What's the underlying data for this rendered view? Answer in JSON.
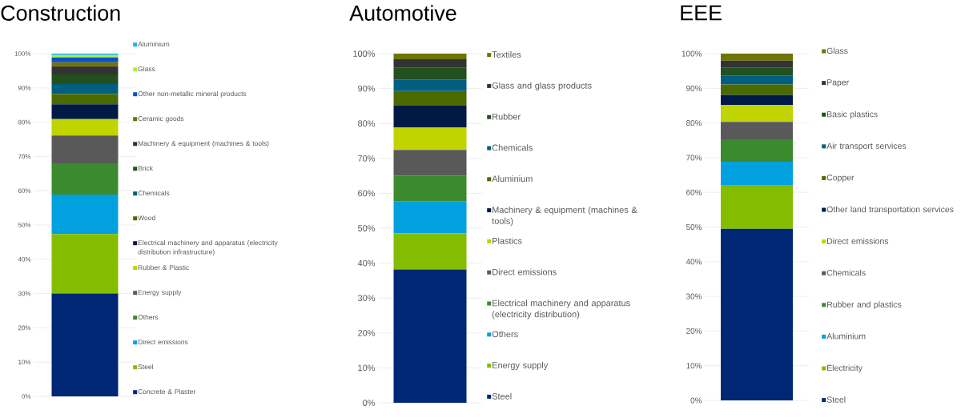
{
  "chart_data": [
    {
      "type": "bar",
      "title": "Construction",
      "stacked": true,
      "categories": [
        null
      ],
      "ylim": [
        0,
        100
      ],
      "yticks": [
        {
          "value": 0,
          "label": "0%"
        },
        {
          "value": 10,
          "label": "10%"
        },
        {
          "value": 20,
          "label": "20%"
        },
        {
          "value": 30,
          "label": "30%"
        },
        {
          "value": 40,
          "label": "40%"
        },
        {
          "value": 50,
          "label": "50%"
        },
        {
          "value": 60,
          "label": "60%"
        },
        {
          "value": 70,
          "label": "70%"
        },
        {
          "value": 80,
          "label": "80%"
        },
        {
          "value": 90,
          "label": "90%"
        },
        {
          "value": 100,
          "label": "100%"
        }
      ],
      "grid": "y",
      "legend": "right",
      "series": [
        {
          "name": "Concrete & Plaster",
          "color": "#002776",
          "values": [
            30.0
          ]
        },
        {
          "name": "Steel",
          "color": "#84bd00",
          "values": [
            17.4
          ]
        },
        {
          "name": "Direct emissions",
          "color": "#00a1de",
          "values": [
            11.5
          ]
        },
        {
          "name": "Others",
          "color": "#3c8a2e",
          "values": [
            9.1
          ]
        },
        {
          "name": "Energy supply",
          "color": "#595959",
          "values": [
            8.1
          ]
        },
        {
          "name": "Rubber & Plastic",
          "color": "#c0d400",
          "values": [
            4.8
          ]
        },
        {
          "name": "Electrical machinery and apparatus (electricity distribution infrastructure)",
          "color": "#001a45",
          "values": [
            4.3
          ]
        },
        {
          "name": "Wood",
          "color": "#4a6a00",
          "values": [
            3.0
          ]
        },
        {
          "name": "Chemicals",
          "color": "#005f80",
          "values": [
            2.9
          ]
        },
        {
          "name": "Brick",
          "color": "#22501f",
          "values": [
            2.8
          ]
        },
        {
          "name": "Machinery & equipment (machines & tools)",
          "color": "#333333",
          "values": [
            2.4
          ]
        },
        {
          "name": "Ceramic goods",
          "color": "#6e7500",
          "values": [
            1.2
          ]
        },
        {
          "name": "Other non-metallic mineral products",
          "color": "#0c4ecf",
          "values": [
            1.4
          ]
        },
        {
          "name": "Glass",
          "color": "#a5f03c",
          "values": [
            0.7
          ]
        },
        {
          "name": "Aluminium",
          "color": "#20b0f0",
          "values": [
            0.4
          ]
        }
      ]
    },
    {
      "type": "bar",
      "title": "Automotive",
      "stacked": true,
      "categories": [
        null
      ],
      "ylim": [
        0,
        100
      ],
      "yticks": [
        {
          "value": 0,
          "label": "0%"
        },
        {
          "value": 10,
          "label": "10%"
        },
        {
          "value": 20,
          "label": "20%"
        },
        {
          "value": 30,
          "label": "30%"
        },
        {
          "value": 40,
          "label": "40%"
        },
        {
          "value": 50,
          "label": "50%"
        },
        {
          "value": 60,
          "label": "60%"
        },
        {
          "value": 70,
          "label": "70%"
        },
        {
          "value": 80,
          "label": "80%"
        },
        {
          "value": 90,
          "label": "90%"
        },
        {
          "value": 100,
          "label": "100%"
        }
      ],
      "grid": "y",
      "legend": "right",
      "series": [
        {
          "name": "Steel",
          "color": "#002776",
          "values": [
            38.2
          ]
        },
        {
          "name": "Energy supply",
          "color": "#84bd00",
          "values": [
            10.3
          ]
        },
        {
          "name": "Others",
          "color": "#00a1de",
          "values": [
            9.1
          ]
        },
        {
          "name": "Electrical machinery and apparatus (electricity distribution)",
          "color": "#3c8a2e",
          "values": [
            7.5
          ]
        },
        {
          "name": "Direct emissions",
          "color": "#595959",
          "values": [
            7.3
          ]
        },
        {
          "name": "Plastics",
          "color": "#c0d400",
          "values": [
            6.5
          ]
        },
        {
          "name": "Machinery & equipment (machines & tools)",
          "color": "#001a45",
          "values": [
            6.2
          ]
        },
        {
          "name": "Aluminium",
          "color": "#4a6a00",
          "values": [
            4.2
          ]
        },
        {
          "name": "Chemicals",
          "color": "#005f80",
          "values": [
            3.3
          ]
        },
        {
          "name": "Rubber",
          "color": "#22501f",
          "values": [
            3.3
          ]
        },
        {
          "name": "Glass and glass products",
          "color": "#333333",
          "values": [
            2.5
          ]
        },
        {
          "name": "Textiles",
          "color": "#6e7500",
          "values": [
            1.6
          ]
        }
      ]
    },
    {
      "type": "bar",
      "title": "EEE",
      "stacked": true,
      "categories": [
        null
      ],
      "ylim": [
        0,
        100
      ],
      "yticks": [
        {
          "value": 0,
          "label": "0%"
        },
        {
          "value": 10,
          "label": "10%"
        },
        {
          "value": 20,
          "label": "20%"
        },
        {
          "value": 30,
          "label": "30%"
        },
        {
          "value": 40,
          "label": "40%"
        },
        {
          "value": 50,
          "label": "50%"
        },
        {
          "value": 60,
          "label": "60%"
        },
        {
          "value": 70,
          "label": "70%"
        },
        {
          "value": 80,
          "label": "80%"
        },
        {
          "value": 90,
          "label": "90%"
        },
        {
          "value": 100,
          "label": "100%"
        }
      ],
      "grid": "y",
      "legend": "right",
      "series": [
        {
          "name": "Steel",
          "color": "#002776",
          "values": [
            49.5
          ]
        },
        {
          "name": "Electricity",
          "color": "#84bd00",
          "values": [
            12.6
          ]
        },
        {
          "name": "Aluminium",
          "color": "#00a1de",
          "values": [
            6.7
          ]
        },
        {
          "name": "Rubber and plastics",
          "color": "#3c8a2e",
          "values": [
            6.5
          ]
        },
        {
          "name": "Chemicals",
          "color": "#595959",
          "values": [
            5.0
          ]
        },
        {
          "name": "Direct emissions",
          "color": "#c0d400",
          "values": [
            4.9
          ]
        },
        {
          "name": "Other land transportation services",
          "color": "#001a45",
          "values": [
            2.9
          ]
        },
        {
          "name": "Copper",
          "color": "#4a6a00",
          "values": [
            3.0
          ]
        },
        {
          "name": "Air transport services",
          "color": "#005f80",
          "values": [
            2.5
          ]
        },
        {
          "name": "Basic plastics",
          "color": "#22501f",
          "values": [
            2.3
          ]
        },
        {
          "name": "Paper",
          "color": "#333333",
          "values": [
            2.1
          ]
        },
        {
          "name": "Glass",
          "color": "#6e7500",
          "values": [
            2.0
          ]
        }
      ]
    }
  ]
}
